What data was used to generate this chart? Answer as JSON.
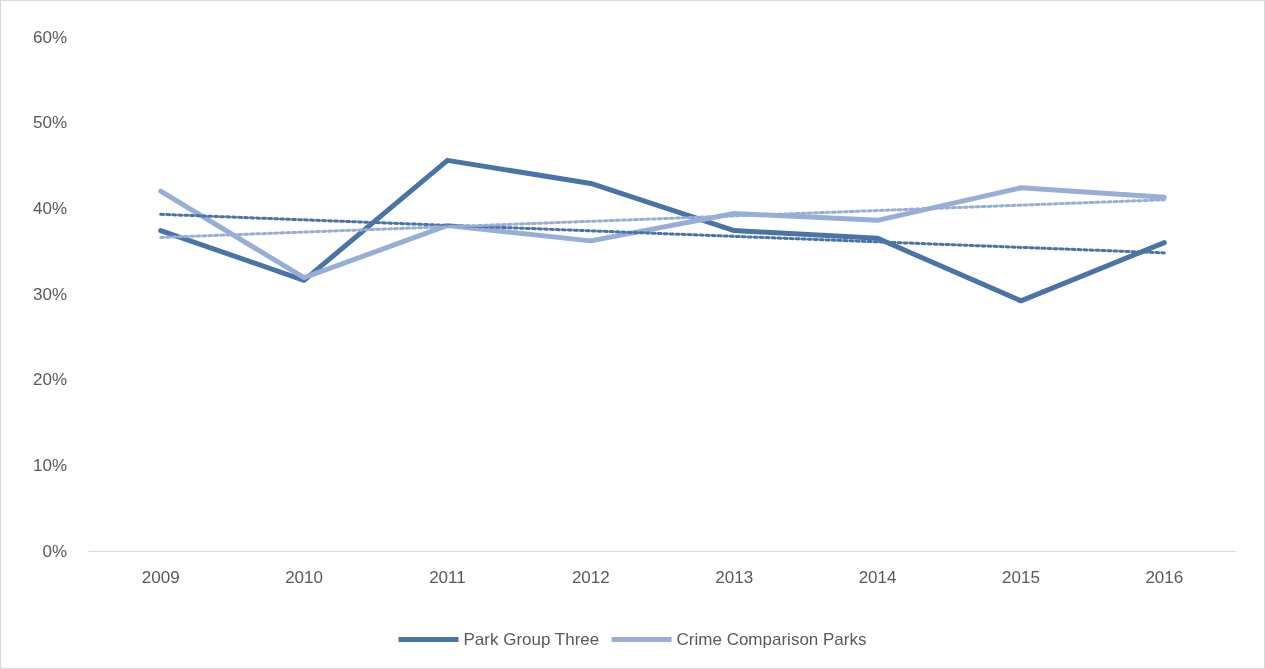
{
  "chart_data": {
    "type": "line",
    "categories": [
      "2009",
      "2010",
      "2011",
      "2012",
      "2013",
      "2014",
      "2015",
      "2016"
    ],
    "series": [
      {
        "name": "Park Group Three",
        "color": "#4a74a8",
        "values": [
          37.4,
          31.6,
          45.6,
          42.9,
          37.4,
          36.5,
          29.2,
          36.0
        ]
      },
      {
        "name": "Crime Comparison Parks",
        "color": "#97aed6",
        "values": [
          42.0,
          31.9,
          38.0,
          36.2,
          39.4,
          38.6,
          42.4,
          41.3
        ]
      },
      {
        "type": "line",
        "line_style": "dotted",
        "color": "#4a74a8",
        "values": [
          39.3,
          null,
          null,
          null,
          null,
          null,
          null,
          34.8
        ]
      },
      {
        "type": "line",
        "line_style": "dotted",
        "color": "#97aed6",
        "values": [
          36.6,
          null,
          null,
          null,
          null,
          null,
          null,
          41.0
        ]
      }
    ],
    "ylim": [
      0,
      60
    ],
    "yticks": [
      {
        "value": 0,
        "label": "0%"
      },
      {
        "value": 10,
        "label": "10%"
      },
      {
        "value": 20,
        "label": "20%"
      },
      {
        "value": 30,
        "label": "30%"
      },
      {
        "value": 40,
        "label": "40%"
      },
      {
        "value": 50,
        "label": "50%"
      },
      {
        "value": 60,
        "label": "60%"
      }
    ],
    "grid": false,
    "legend": "bottom",
    "marker": "none",
    "line_style": "solid"
  }
}
